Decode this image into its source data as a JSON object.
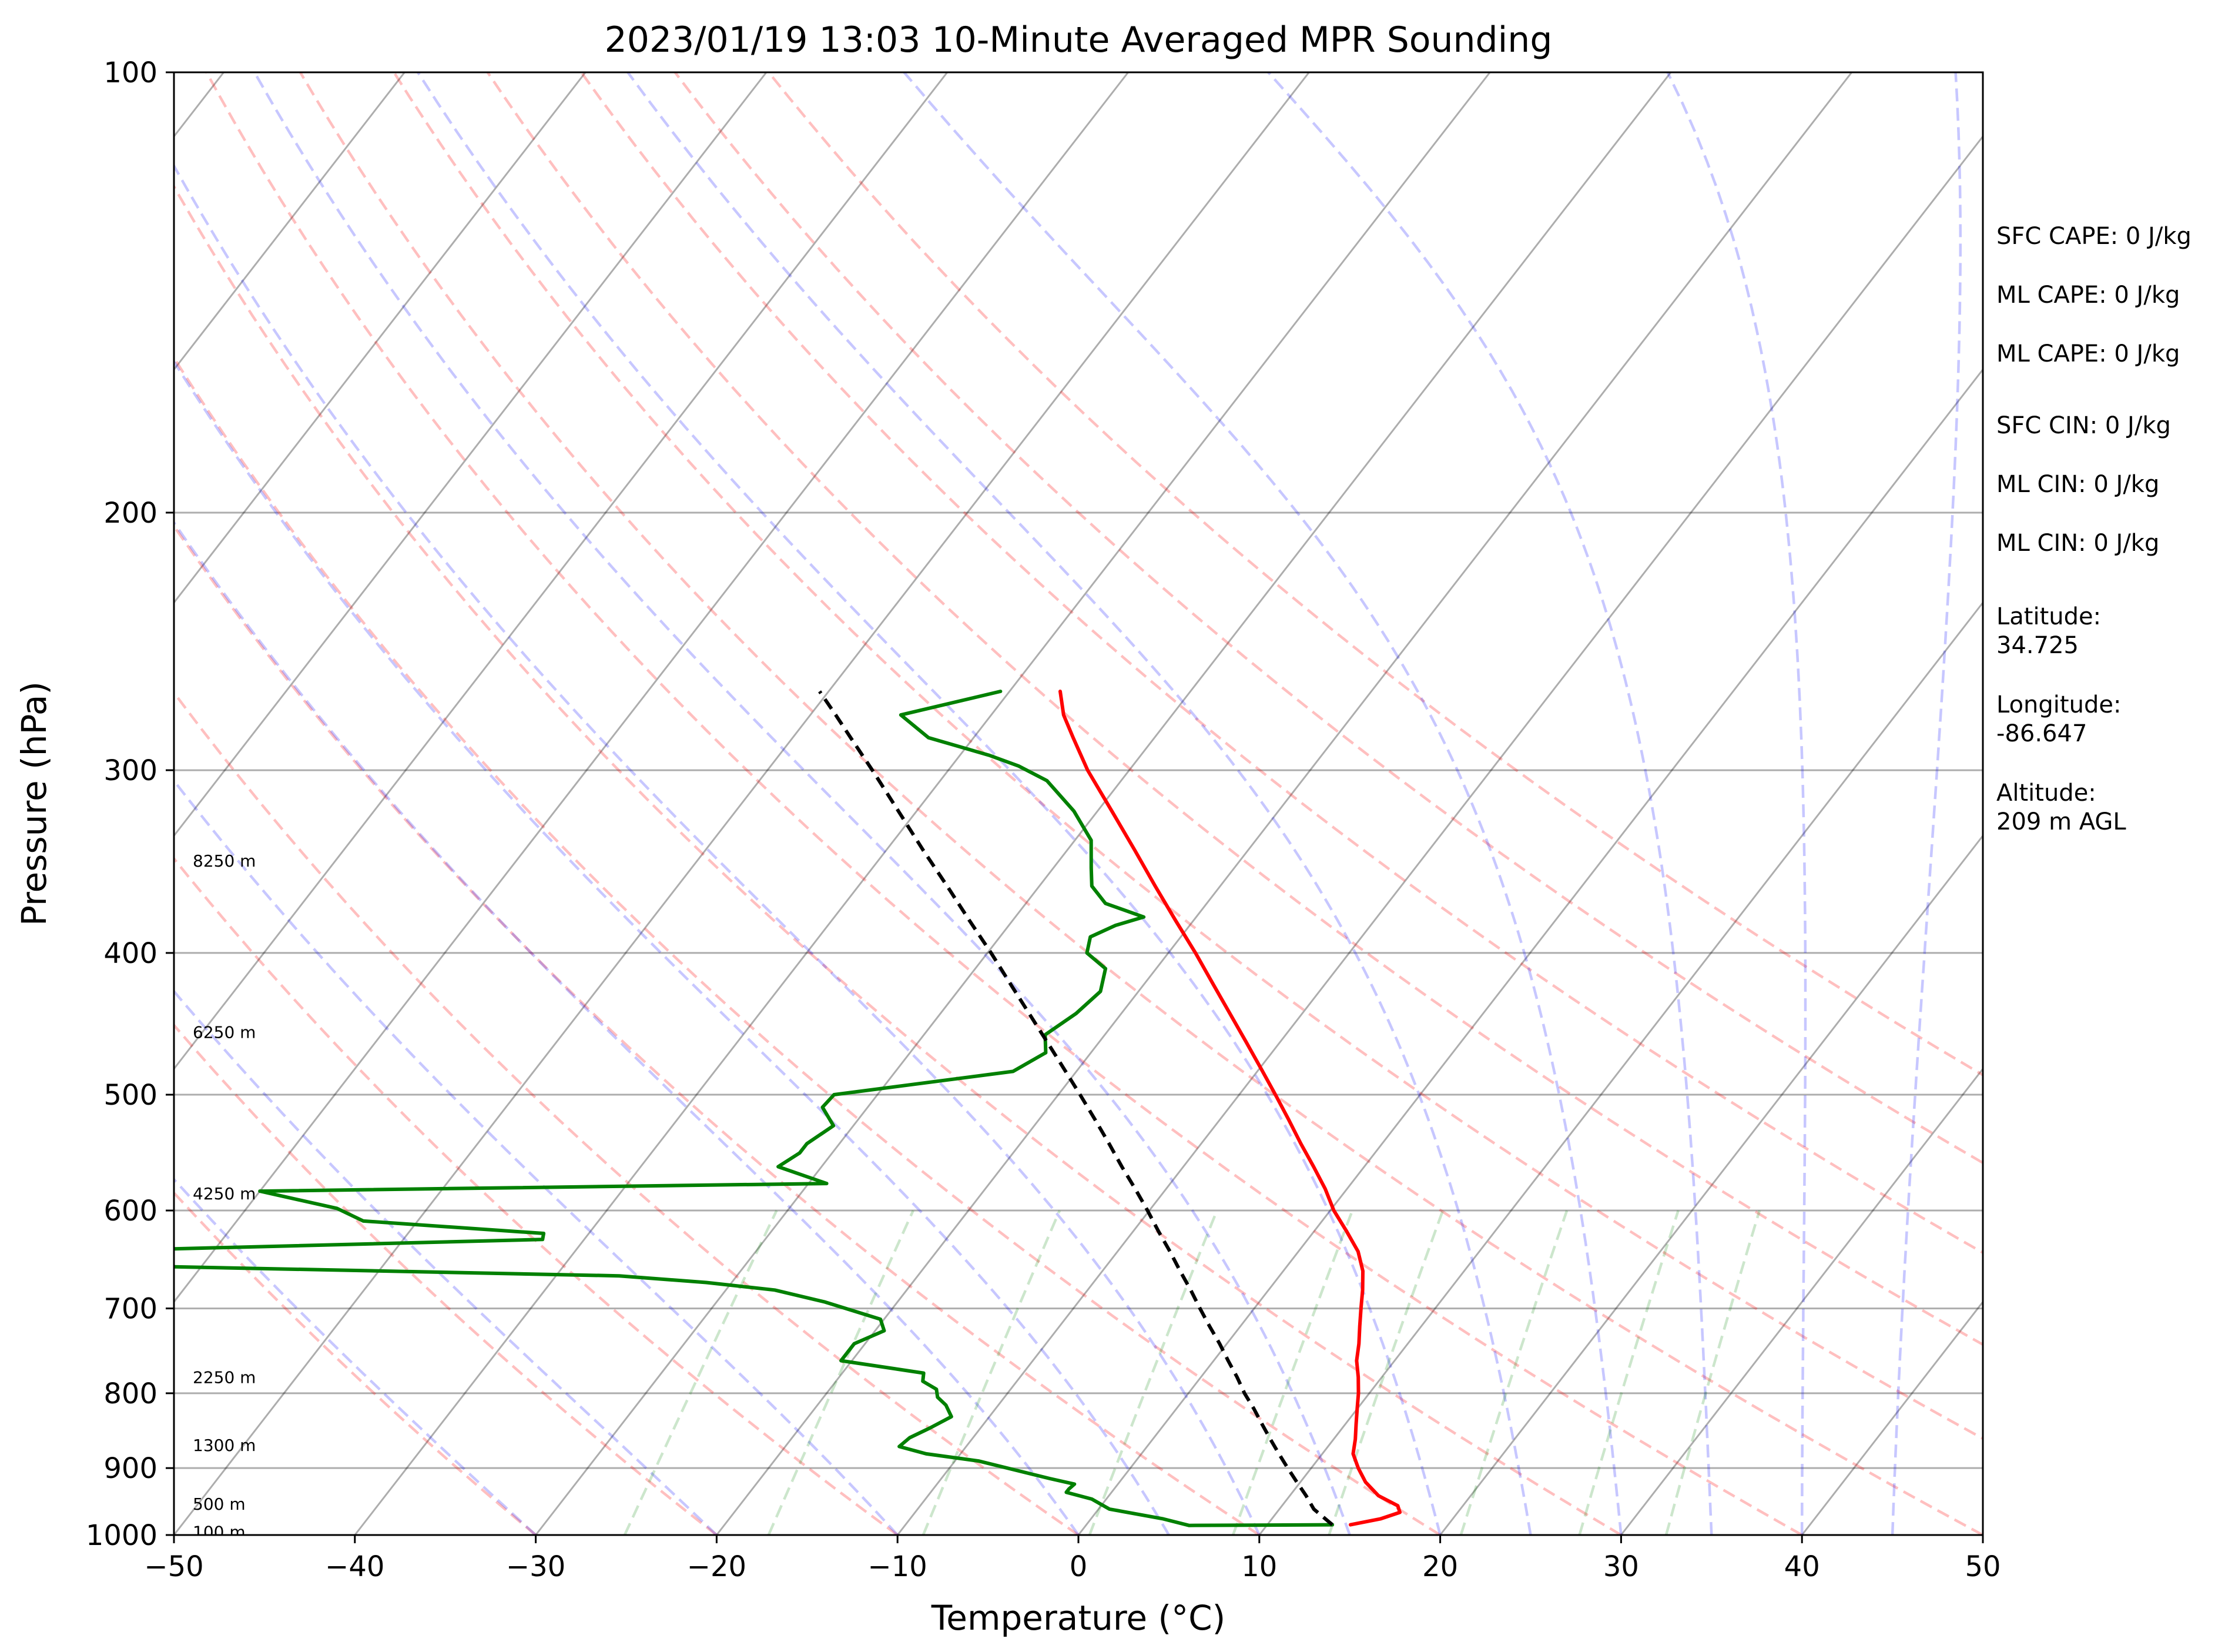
{
  "chart_data": {
    "type": "line",
    "subtype": "skew-t log-p sounding",
    "title": "2023/01/19 13:03 10-Minute Averaged MPR Sounding",
    "xlabel": "Temperature (°C)",
    "ylabel": "Pressure (hPa)",
    "xlim": [
      -50,
      50
    ],
    "ylim": [
      1000,
      100
    ],
    "y_scale": "log",
    "skew_deg_per_log10": 62.75,
    "x_ticks": [
      -50,
      -40,
      -30,
      -20,
      -10,
      0,
      10,
      20,
      30,
      40,
      50
    ],
    "y_ticks": [
      100,
      200,
      300,
      400,
      500,
      600,
      700,
      800,
      900,
      1000
    ],
    "x_tick_labels": [
      "−50",
      "−40",
      "−30",
      "−20",
      "−10",
      "0",
      "10",
      "20",
      "30",
      "40",
      "50"
    ],
    "y_tick_labels": [
      "100",
      "200",
      "300",
      "400",
      "500",
      "600",
      "700",
      "800",
      "900",
      "1000"
    ],
    "grid": true,
    "dry_adiabats_theta_c": [
      -30,
      -20,
      -10,
      0,
      10,
      20,
      30,
      40,
      50,
      60,
      70,
      80,
      90,
      100
    ],
    "moist_adiabats_c": [
      -30,
      -20,
      -10,
      0,
      5,
      10,
      15,
      20,
      25,
      30,
      35,
      40,
      45
    ],
    "mixing_ratio_lines_gkg": [
      0.5,
      1,
      2,
      4,
      7,
      10,
      16,
      24,
      32
    ],
    "colors": {
      "temperature": "#ff0000",
      "dewpoint": "#008000",
      "parcel": "#000000",
      "dry_adiabat": "#ff0000",
      "moist_adiabat": "#0000ff",
      "mixing_ratio": "#008000",
      "isotherm": "#000000",
      "isobar": "#000000"
    },
    "series": [
      {
        "name": "temperature",
        "style": "solid",
        "points": [
          [
            984,
            14.6
          ],
          [
            975,
            16.0
          ],
          [
            965,
            16.8
          ],
          [
            955,
            16.4
          ],
          [
            940,
            14.9
          ],
          [
            920,
            13.6
          ],
          [
            900,
            12.6
          ],
          [
            880,
            11.7
          ],
          [
            860,
            11.2
          ],
          [
            840,
            10.6
          ],
          [
            820,
            10.0
          ],
          [
            800,
            9.4
          ],
          [
            780,
            8.7
          ],
          [
            760,
            7.9
          ],
          [
            740,
            7.3
          ],
          [
            720,
            6.6
          ],
          [
            700,
            5.9
          ],
          [
            680,
            5.2
          ],
          [
            660,
            4.4
          ],
          [
            640,
            3.3
          ],
          [
            620,
            1.8
          ],
          [
            600,
            0.2
          ],
          [
            580,
            -1.2
          ],
          [
            560,
            -2.8
          ],
          [
            540,
            -4.5
          ],
          [
            520,
            -6.2
          ],
          [
            500,
            -8.0
          ],
          [
            480,
            -9.9
          ],
          [
            460,
            -11.9
          ],
          [
            440,
            -14.0
          ],
          [
            420,
            -16.2
          ],
          [
            400,
            -18.5
          ],
          [
            380,
            -21.0
          ],
          [
            360,
            -23.6
          ],
          [
            340,
            -26.3
          ],
          [
            320,
            -29.2
          ],
          [
            300,
            -32.3
          ],
          [
            285,
            -34.5
          ],
          [
            275,
            -36.0
          ],
          [
            265,
            -37.2
          ]
        ]
      },
      {
        "name": "dewpoint",
        "style": "solid",
        "points": [
          [
            984,
            13.6
          ],
          [
            985,
            5.7
          ],
          [
            975,
            4.0
          ],
          [
            960,
            0.6
          ],
          [
            945,
            -0.8
          ],
          [
            935,
            -2.5
          ],
          [
            930,
            -2.5
          ],
          [
            923,
            -2.4
          ],
          [
            915,
            -4.0
          ],
          [
            890,
            -8.7
          ],
          [
            880,
            -11.9
          ],
          [
            870,
            -13.7
          ],
          [
            858,
            -13.5
          ],
          [
            845,
            -12.8
          ],
          [
            830,
            -12.1
          ],
          [
            815,
            -12.9
          ],
          [
            805,
            -13.7
          ],
          [
            795,
            -14.1
          ],
          [
            785,
            -15.2
          ],
          [
            775,
            -15.5
          ],
          [
            760,
            -20.6
          ],
          [
            740,
            -20.6
          ],
          [
            725,
            -19.5
          ],
          [
            712,
            -20.2
          ],
          [
            693,
            -24.0
          ],
          [
            680,
            -27.3
          ],
          [
            672,
            -31.4
          ],
          [
            665,
            -36.5
          ],
          [
            655,
            -63.0
          ],
          [
            640,
            -68.0
          ],
          [
            628,
            -42.3
          ],
          [
            622,
            -42.5
          ],
          [
            610,
            -53.0
          ],
          [
            598,
            -55.0
          ],
          [
            582,
            -60.0
          ],
          [
            575,
            -29.0
          ],
          [
            560,
            -32.4
          ],
          [
            548,
            -31.8
          ],
          [
            540,
            -31.8
          ],
          [
            525,
            -31.1
          ],
          [
            510,
            -32.5
          ],
          [
            500,
            -32.4
          ],
          [
            482,
            -23.5
          ],
          [
            468,
            -22.5
          ],
          [
            455,
            -23.3
          ],
          [
            440,
            -22.5
          ],
          [
            425,
            -22.1
          ],
          [
            410,
            -22.8
          ],
          [
            400,
            -24.5
          ],
          [
            390,
            -25.0
          ],
          [
            383,
            -24.1
          ],
          [
            378,
            -22.9
          ],
          [
            370,
            -25.6
          ],
          [
            360,
            -27.1
          ],
          [
            350,
            -27.9
          ],
          [
            335,
            -29.1
          ],
          [
            320,
            -31.3
          ],
          [
            305,
            -34.1
          ],
          [
            298,
            -36.3
          ],
          [
            293,
            -38.4
          ],
          [
            285,
            -42.5
          ],
          [
            275,
            -45.0
          ],
          [
            265,
            -40.5
          ]
        ]
      },
      {
        "name": "parcel",
        "style": "dashed",
        "points": [
          [
            984,
            13.6
          ],
          [
            960,
            11.9
          ],
          [
            940,
            10.9
          ],
          [
            920,
            9.8
          ],
          [
            900,
            8.7
          ],
          [
            880,
            7.6
          ],
          [
            860,
            6.5
          ],
          [
            840,
            5.4
          ],
          [
            820,
            4.3
          ],
          [
            800,
            3.1
          ],
          [
            780,
            2.0
          ],
          [
            760,
            0.8
          ],
          [
            740,
            -0.4
          ],
          [
            720,
            -1.7
          ],
          [
            700,
            -3.0
          ],
          [
            680,
            -4.3
          ],
          [
            660,
            -5.7
          ],
          [
            640,
            -7.1
          ],
          [
            620,
            -8.6
          ],
          [
            600,
            -10.1
          ],
          [
            580,
            -11.7
          ],
          [
            560,
            -13.4
          ],
          [
            540,
            -15.1
          ],
          [
            520,
            -16.9
          ],
          [
            500,
            -18.8
          ],
          [
            480,
            -20.8
          ],
          [
            460,
            -22.9
          ],
          [
            440,
            -25.1
          ],
          [
            420,
            -27.4
          ],
          [
            400,
            -29.8
          ],
          [
            380,
            -32.4
          ],
          [
            360,
            -35.1
          ],
          [
            340,
            -38.0
          ],
          [
            320,
            -41.0
          ],
          [
            300,
            -44.2
          ],
          [
            285,
            -46.8
          ],
          [
            275,
            -48.6
          ],
          [
            265,
            -50.5
          ]
        ]
      }
    ],
    "altitude_labels": [
      {
        "text": "8250 m",
        "p": 346
      },
      {
        "text": "6250 m",
        "p": 453
      },
      {
        "text": "4250 m",
        "p": 584
      },
      {
        "text": "2250 m",
        "p": 780
      },
      {
        "text": "1300 m",
        "p": 868
      },
      {
        "text": "500 m",
        "p": 952
      },
      {
        "text": "100 m",
        "p": 995
      }
    ],
    "stats": [
      [
        "SFC CAPE: 0 J/kg"
      ],
      [
        "ML CAPE: 0 J/kg"
      ],
      [
        "ML CAPE: 0 J/kg"
      ],
      [
        "SFC CIN: 0 J/kg"
      ],
      [
        "ML CIN: 0 J/kg"
      ],
      [
        "ML CIN: 0 J/kg"
      ],
      [
        "Latitude:",
        "34.725"
      ],
      [
        "Longitude:",
        "-86.647"
      ],
      [
        "Altitude:",
        "209 m AGL"
      ]
    ]
  }
}
